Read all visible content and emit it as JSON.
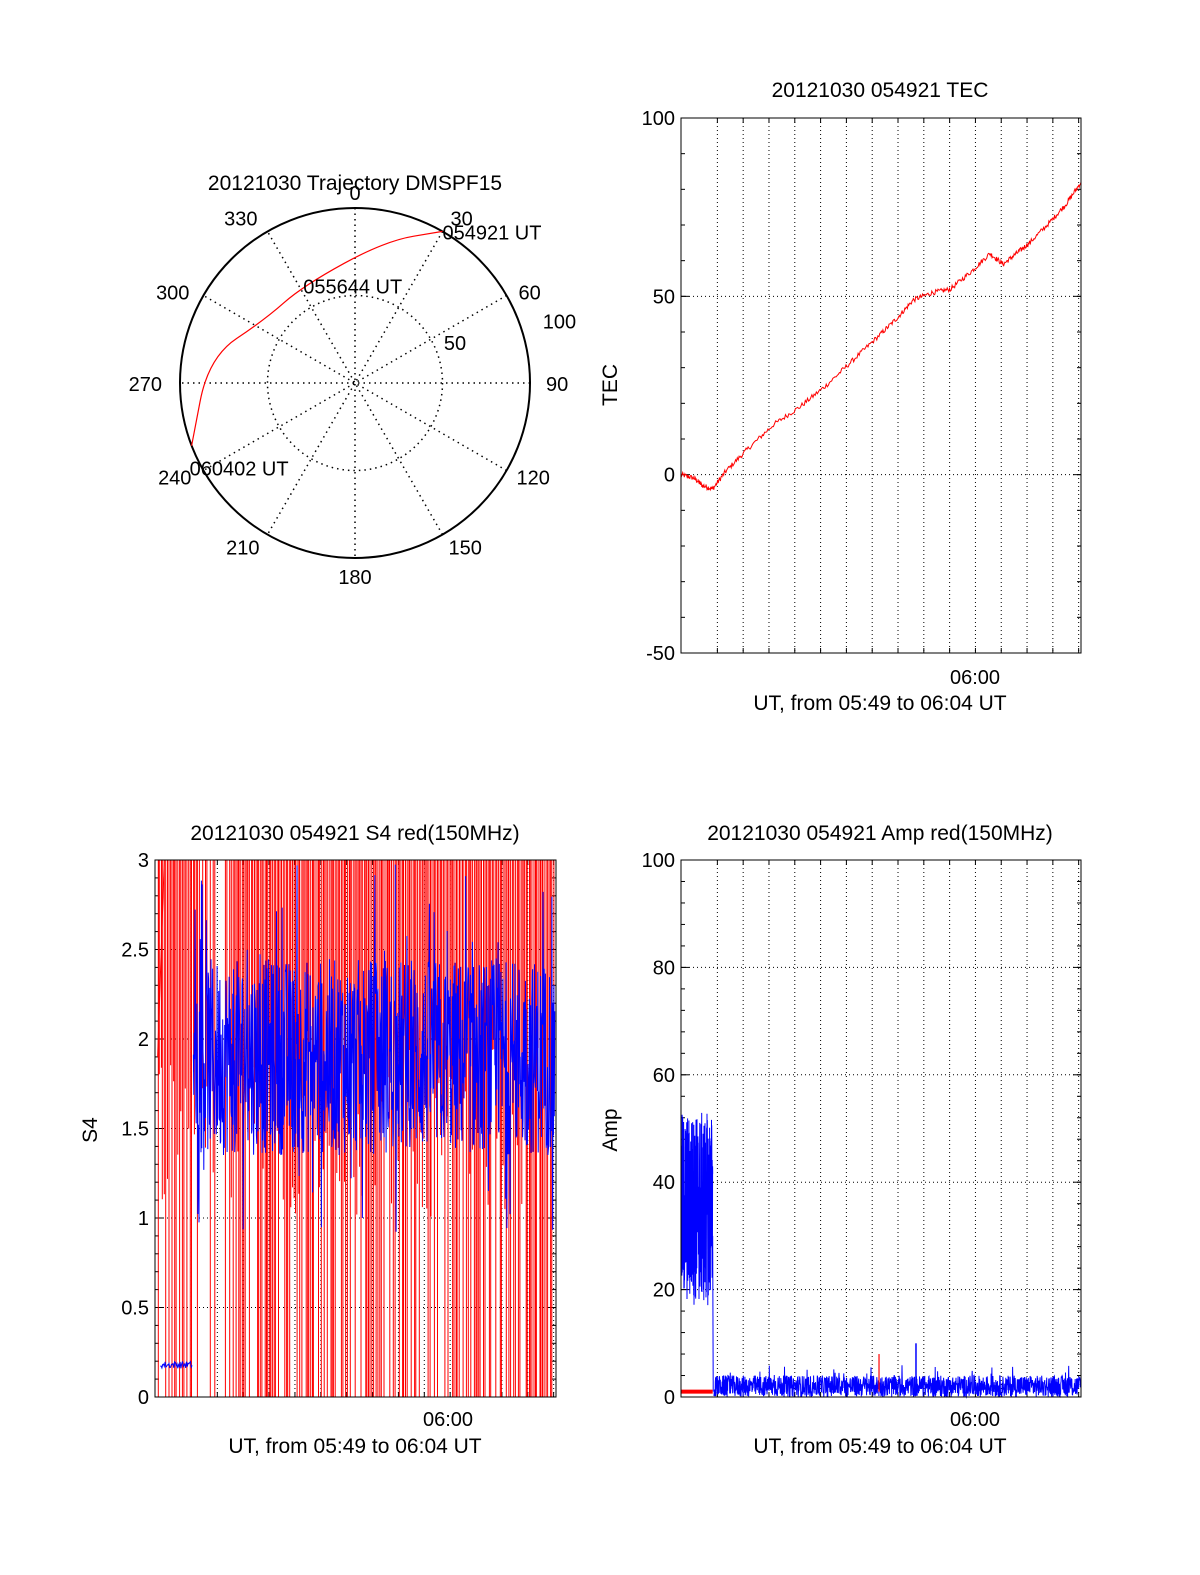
{
  "colors": {
    "red": "#ff0000",
    "blue": "#0000ff",
    "axis": "#000000",
    "background": "#ffffff"
  },
  "chart_data": [
    {
      "type": "polar",
      "title": "20121030 Trajectory DMSPF15",
      "azimuth_labels": [
        "0",
        "30",
        "60",
        "90",
        "120",
        "150",
        "180",
        "210",
        "240",
        "270",
        "300",
        "330"
      ],
      "radial_labels": [
        "50",
        "100"
      ],
      "radial_range": [
        0,
        100
      ],
      "grid": true,
      "series": [
        {
          "color": "red",
          "points": [
            {
              "az": 30,
              "r": 100
            },
            {
              "az": 12,
              "r": 83
            },
            {
              "az": -28,
              "r": 63
            },
            {
              "az": -55,
              "r": 63
            },
            {
              "az": -80,
              "r": 85
            },
            {
              "az": -111,
              "r": 100
            }
          ]
        }
      ],
      "annotations": [
        {
          "text": "054921 UT",
          "az": 30,
          "r": 100
        },
        {
          "text": "055644 UT",
          "az": -28,
          "r": 63
        },
        {
          "text": "060402 UT",
          "az": -111,
          "r": 100
        }
      ]
    },
    {
      "type": "line",
      "title": "20121030 054921 TEC",
      "xlabel": "UT, from 05:49 to 06:04 UT",
      "ylabel": "TEC",
      "xticks": [
        {
          "label": "06:00",
          "x": 11.65
        }
      ],
      "xlim": [
        0,
        15.15
      ],
      "ylim": [
        -50,
        100
      ],
      "yticks": [
        -50,
        0,
        50,
        100
      ],
      "grid": true,
      "series": [
        {
          "color": "red",
          "x": [
            0,
            0.5,
            0.8,
            1.2,
            1.7,
            2.5,
            3.5,
            4.5,
            5.5,
            6.5,
            7.5,
            8.2,
            8.8,
            9.5,
            10.2,
            11.0,
            11.7,
            12.2,
            12.7,
            13.2,
            14.0,
            14.6,
            15.15
          ],
          "y": [
            0,
            -1,
            -3,
            -4,
            1,
            7,
            14,
            19,
            25,
            32,
            39,
            44,
            49,
            51,
            52,
            57,
            62,
            59,
            62,
            65,
            71,
            76,
            82
          ]
        }
      ]
    },
    {
      "type": "line",
      "title": "20121030 054921 S4 red(150MHz)",
      "xlabel": "UT, from 05:49 to 06:04 UT",
      "ylabel": "S4",
      "xticks": [
        {
          "label": "06:00",
          "x": 11.65
        }
      ],
      "xlim": [
        0,
        15.15
      ],
      "ylim": [
        0,
        3
      ],
      "yticks": [
        "0",
        "0.5",
        "1",
        "1.5",
        "2",
        "2.5",
        "3"
      ],
      "grid": true,
      "series": [
        {
          "color": "red",
          "note_values": "dense red spikes spanning 0 to 3 across the window; baseline red near 1.4-1.9"
        },
        {
          "color": "blue",
          "segments": [
            {
              "x": [
                0.2,
                1.4
              ],
              "y_mean": 0.18,
              "y_spread": 0.02
            },
            {
              "x": [
                1.45,
                15.1
              ],
              "y_mean": 1.9,
              "y_spread": 0.55
            }
          ]
        }
      ]
    },
    {
      "type": "line",
      "title": "20121030 054921 Amp red(150MHz)",
      "xlabel": "UT, from 05:49 to 06:04 UT",
      "ylabel": "Amp",
      "xticks": [
        {
          "label": "06:00",
          "x": 11.65
        }
      ],
      "xlim": [
        0,
        15.15
      ],
      "ylim": [
        0,
        100
      ],
      "yticks": [
        0,
        20,
        40,
        60,
        80,
        100
      ],
      "grid": true,
      "series": [
        {
          "color": "red",
          "segments": [
            {
              "x": [
                0,
                1.2
              ],
              "y": 1
            }
          ],
          "spike": {
            "x": 7.5,
            "y": 8
          }
        },
        {
          "color": "blue",
          "segments": [
            {
              "x": [
                0,
                1.2
              ],
              "y_mean": 35,
              "y_spread": 18
            },
            {
              "x": [
                1.25,
                15.15
              ],
              "y_mean": 2,
              "y_spread": 2
            }
          ],
          "spike": {
            "x": 8.9,
            "y": 10
          }
        }
      ]
    }
  ],
  "panels": {
    "polar_title": "20121030 Trajectory DMSPF15",
    "tec_title": "20121030 054921 TEC",
    "tec_ylabel": "TEC",
    "tec_xlabel": "UT, from 05:49 to 06:04 UT",
    "tec_xtick": "06:00",
    "s4_title": "20121030 054921 S4 red(150MHz)",
    "s4_ylabel": "S4",
    "s4_xlabel": "UT, from 05:49 to 06:04 UT",
    "s4_xtick": "06:00",
    "amp_title": "20121030 054921 Amp red(150MHz)",
    "amp_ylabel": "Amp",
    "amp_xlabel": "UT, from 05:49 to 06:04 UT",
    "amp_xtick": "06:00"
  }
}
